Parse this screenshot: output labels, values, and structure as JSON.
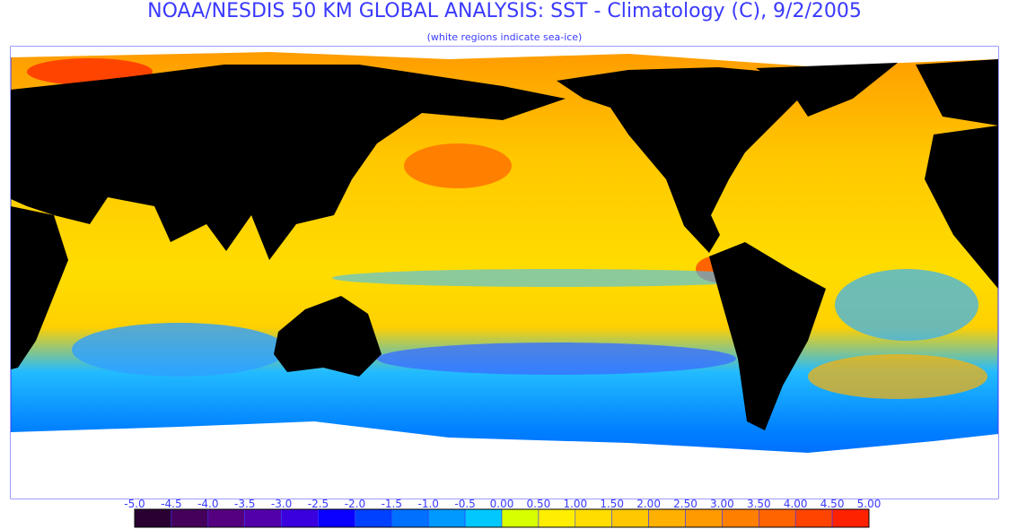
{
  "header": {
    "title": "NOAA/NESDIS 50 KM GLOBAL ANALYSIS: SST - Climatology (C), 9/2/2005",
    "subtitle": "(white regions indicate sea-ice)"
  },
  "colorbar": {
    "range": [
      -5,
      5
    ],
    "ticks": [
      {
        "value": -5,
        "label": "-5.0"
      },
      {
        "value": -4.5,
        "label": "-4.5"
      },
      {
        "value": -4,
        "label": "-4.0"
      },
      {
        "value": -3.5,
        "label": "-3.5"
      },
      {
        "value": -3,
        "label": "-3.0"
      },
      {
        "value": -2.5,
        "label": "-2.5"
      },
      {
        "value": -2,
        "label": "-2.0"
      },
      {
        "value": -1.5,
        "label": "-1.5"
      },
      {
        "value": -1,
        "label": "-1.0"
      },
      {
        "value": -0.5,
        "label": "-0.5"
      },
      {
        "value": 0,
        "label": "0.00"
      },
      {
        "value": 0.5,
        "label": "0.50"
      },
      {
        "value": 1,
        "label": "1.00"
      },
      {
        "value": 1.5,
        "label": "1.50"
      },
      {
        "value": 2,
        "label": "2.00"
      },
      {
        "value": 2.5,
        "label": "2.50"
      },
      {
        "value": 3,
        "label": "3.00"
      },
      {
        "value": 3.5,
        "label": "3.50"
      },
      {
        "value": 4,
        "label": "4.00"
      },
      {
        "value": 4.5,
        "label": "4.50"
      },
      {
        "value": 5,
        "label": "5.00"
      }
    ],
    "colors": [
      "#000000",
      "#2a0033",
      "#44005a",
      "#55007f",
      "#5200aa",
      "#3a00dd",
      "#0a00ff",
      "#0040ff",
      "#0070ff",
      "#0099ff",
      "#00c8ff",
      "#d8ff00",
      "#ffee00",
      "#ffdd00",
      "#ffc800",
      "#ffb000",
      "#ff9a00",
      "#ff7f00",
      "#ff6400",
      "#ff4400",
      "#ff2200"
    ]
  }
}
